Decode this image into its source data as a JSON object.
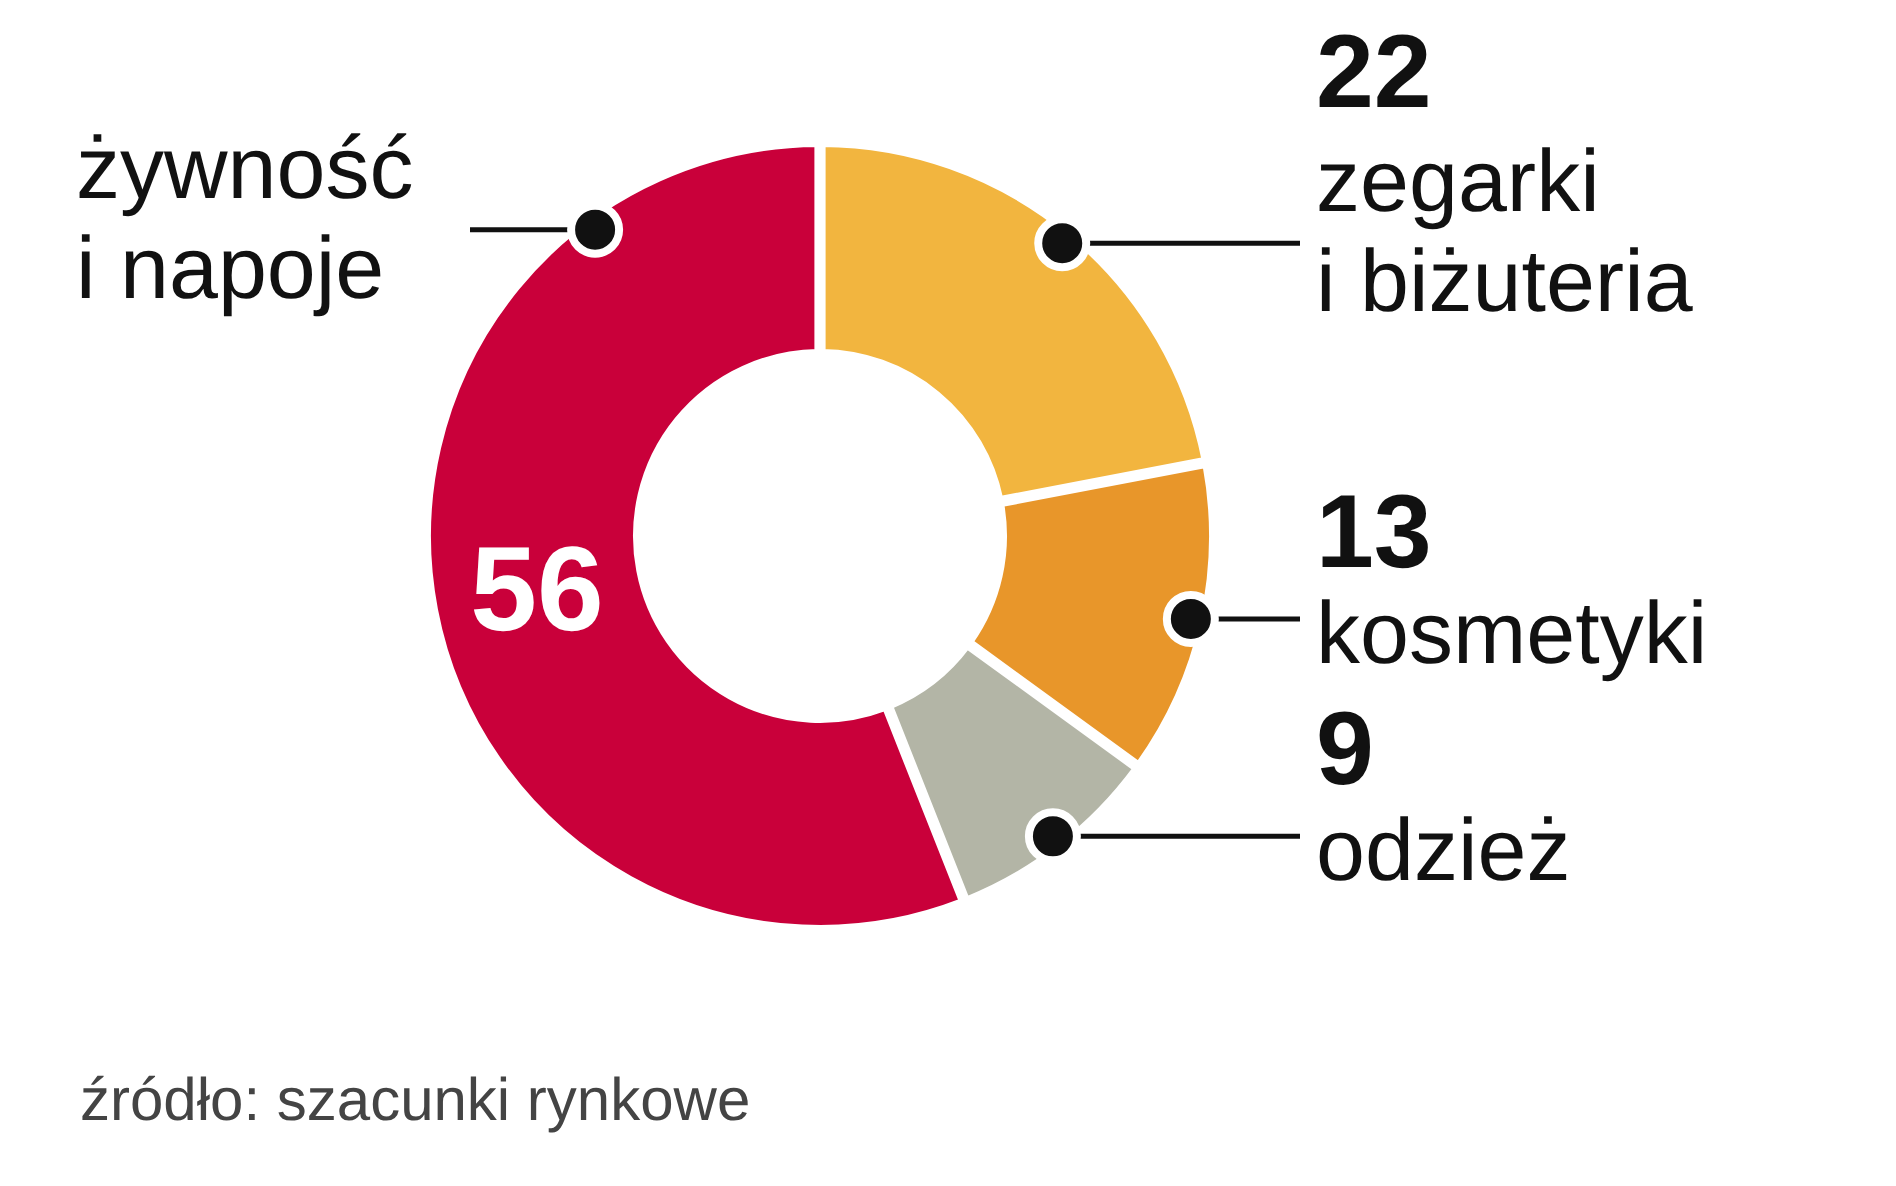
{
  "chart_data": {
    "type": "donut",
    "categories": [
      "zegarki i biżuteria",
      "kosmetyki",
      "odzież",
      "żywność i napoje"
    ],
    "values": [
      22,
      13,
      9,
      56
    ],
    "colors": [
      "#f2b53f",
      "#e8962a",
      "#b3b5a6",
      "#c9003a"
    ],
    "data_labels": true,
    "annotations": [
      "źródło: szacunki rynkowe"
    ]
  }
}
